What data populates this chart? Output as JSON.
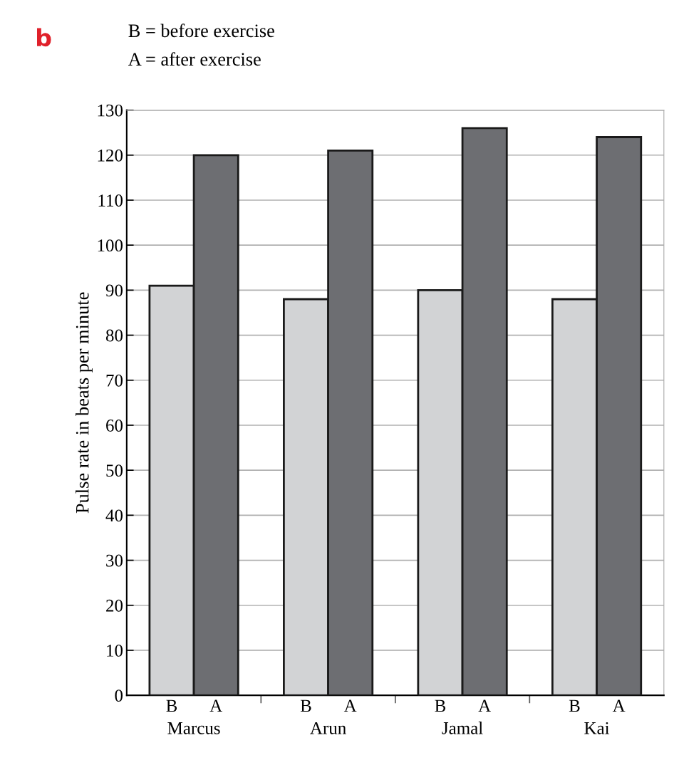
{
  "chart_data": {
    "type": "bar",
    "title": "b",
    "ylabel": "Pulse rate in beats per minute",
    "annotations": [
      "B = before exercise",
      "A = after exercise"
    ],
    "categories": [
      "Marcus",
      "Arun",
      "Jamal",
      "Kai"
    ],
    "series": [
      {
        "name": "B",
        "color": "#d2d3d5",
        "values": [
          91,
          88,
          90,
          88
        ]
      },
      {
        "name": "A",
        "color": "#6d6e72",
        "values": [
          120,
          121,
          126,
          124
        ]
      }
    ],
    "ylim": [
      0,
      130
    ],
    "yticks": [
      0,
      10,
      20,
      30,
      40,
      50,
      60,
      70,
      80,
      90,
      100,
      110,
      120,
      130
    ],
    "grid": "y",
    "legend": false
  }
}
